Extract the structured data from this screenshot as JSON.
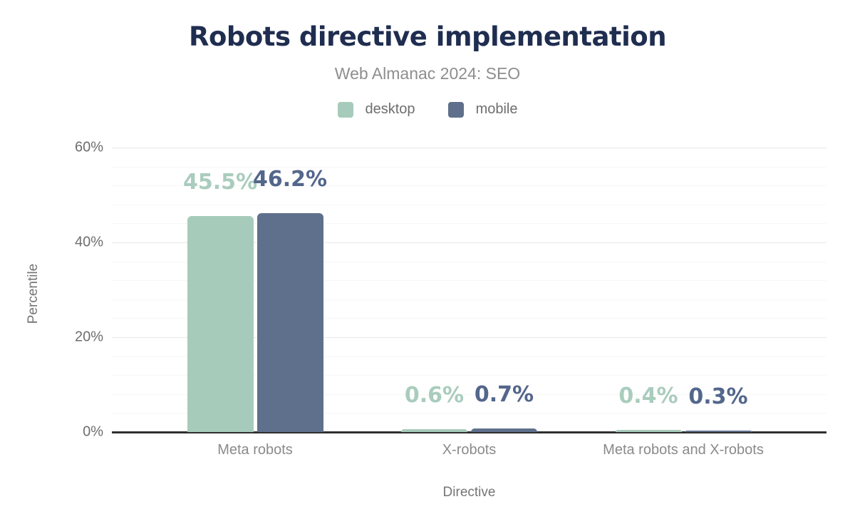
{
  "title": "Robots directive implementation",
  "subtitle": "Web Almanac 2024: SEO",
  "chart_data": {
    "type": "bar",
    "title": "Robots directive implementation",
    "subtitle": "Web Almanac 2024: SEO",
    "categories": [
      "Meta robots",
      "X-robots",
      "Meta robots and X-robots"
    ],
    "series": [
      {
        "name": "desktop",
        "color": "#a7cbbb",
        "label_color": "#a9ccbd",
        "values": [
          45.5,
          0.6,
          0.4
        ]
      },
      {
        "name": "mobile",
        "color": "#5f708c",
        "label_color": "#53668c",
        "values": [
          46.2,
          0.7,
          0.3
        ]
      }
    ],
    "value_suffix": "%",
    "xlabel": "Directive",
    "ylabel": "Percentile",
    "ylim": [
      0,
      60
    ],
    "yticks": [
      {
        "value": 0,
        "label": "0%"
      },
      {
        "value": 20,
        "label": "20%"
      },
      {
        "value": 40,
        "label": "40%"
      },
      {
        "value": 60,
        "label": "60%"
      }
    ],
    "grid": {
      "orientation": "horizontal",
      "minor_step": 4,
      "major_step": 20
    },
    "legend_position": "top"
  },
  "colors": {
    "title": "#1f2d50",
    "subtitle": "#8e8e8e",
    "axis_text": "#6e6e6e",
    "axis_title": "#757575",
    "category_text": "#8a8a8a",
    "axis_line": "#2f2f2f",
    "grid_minor": "#f6f6f6",
    "grid_major": "#e8e8e8",
    "background": "#ffffff"
  }
}
